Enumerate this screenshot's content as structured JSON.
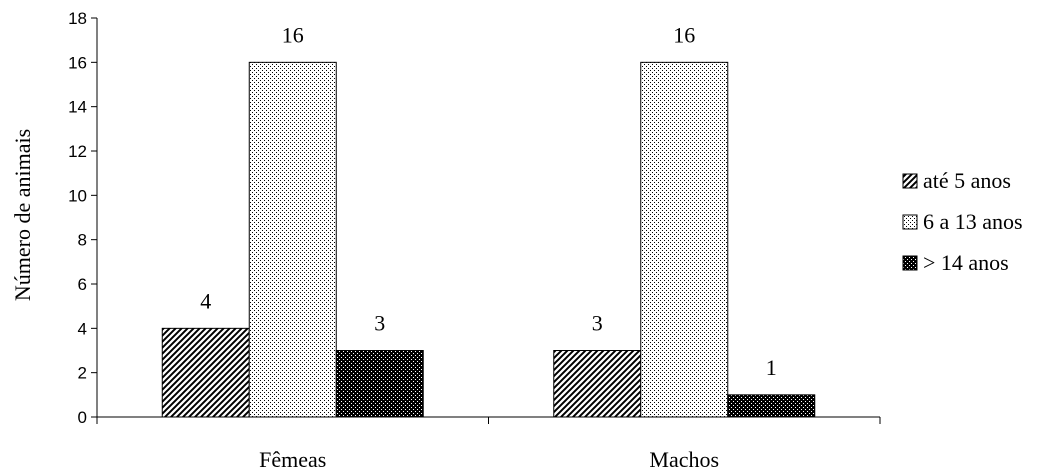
{
  "chart_data": {
    "type": "bar",
    "title": "",
    "xlabel": "",
    "ylabel": "Número de animais",
    "ylim": [
      0,
      18
    ],
    "ytick_step": 2,
    "categories": [
      "Fêmeas",
      "Machos"
    ],
    "series": [
      {
        "name": "até 5 anos",
        "values": [
          4,
          3
        ],
        "pattern": "diagonal-stripes"
      },
      {
        "name": "6 a 13 anos",
        "values": [
          16,
          16
        ],
        "pattern": "light-dots"
      },
      {
        "name": "> 14 anos",
        "values": [
          3,
          1
        ],
        "pattern": "dark-dots"
      }
    ],
    "data_labels": true,
    "legend_position": "right",
    "grid": false
  }
}
